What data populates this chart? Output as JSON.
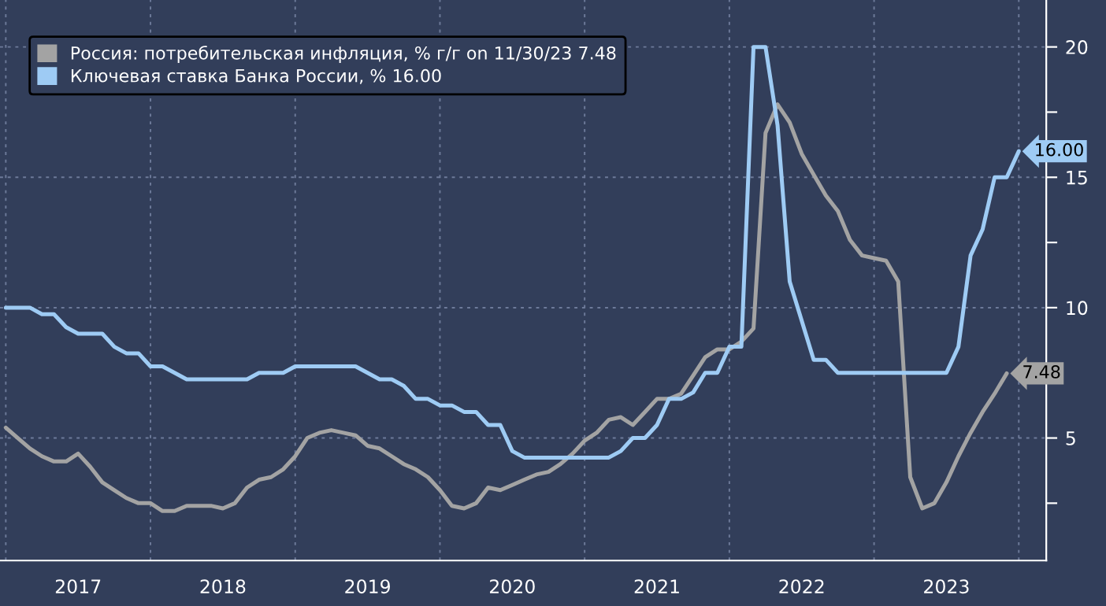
{
  "chart_data": {
    "type": "line",
    "x": [
      2017.0,
      2017.083,
      2017.167,
      2017.25,
      2017.333,
      2017.417,
      2017.5,
      2017.583,
      2017.667,
      2017.75,
      2017.833,
      2017.917,
      2018.0,
      2018.083,
      2018.167,
      2018.25,
      2018.333,
      2018.417,
      2018.5,
      2018.583,
      2018.667,
      2018.75,
      2018.833,
      2018.917,
      2019.0,
      2019.083,
      2019.167,
      2019.25,
      2019.333,
      2019.417,
      2019.5,
      2019.583,
      2019.667,
      2019.75,
      2019.833,
      2019.917,
      2020.0,
      2020.083,
      2020.167,
      2020.25,
      2020.333,
      2020.417,
      2020.5,
      2020.583,
      2020.667,
      2020.75,
      2020.833,
      2020.917,
      2021.0,
      2021.083,
      2021.167,
      2021.25,
      2021.333,
      2021.417,
      2021.5,
      2021.583,
      2021.667,
      2021.75,
      2021.833,
      2021.917,
      2022.0,
      2022.083,
      2022.167,
      2022.25,
      2022.333,
      2022.417,
      2022.5,
      2022.583,
      2022.667,
      2022.75,
      2022.833,
      2022.917,
      2023.0,
      2023.083,
      2023.167,
      2023.25,
      2023.333,
      2023.417,
      2023.5,
      2023.583,
      2023.667,
      2023.75,
      2023.833,
      2023.917,
      2024.0
    ],
    "series": [
      {
        "name": "Россия: потребительская инфляция, % г/г on 11/30/23 7.48",
        "color": "#a3a3a3",
        "values": [
          5.4,
          5.0,
          4.6,
          4.3,
          4.1,
          4.1,
          4.4,
          3.9,
          3.3,
          3.0,
          2.7,
          2.5,
          2.5,
          2.2,
          2.2,
          2.4,
          2.4,
          2.4,
          2.3,
          2.5,
          3.1,
          3.4,
          3.5,
          3.8,
          4.3,
          5.0,
          5.2,
          5.3,
          5.2,
          5.1,
          4.7,
          4.6,
          4.3,
          4.0,
          3.8,
          3.5,
          3.0,
          2.4,
          2.3,
          2.5,
          3.1,
          3.0,
          3.2,
          3.4,
          3.6,
          3.7,
          4.0,
          4.4,
          4.9,
          5.2,
          5.7,
          5.8,
          5.5,
          6.0,
          6.5,
          6.5,
          6.7,
          7.4,
          8.1,
          8.4,
          8.4,
          8.7,
          9.2,
          16.7,
          17.8,
          17.1,
          15.9,
          15.1,
          14.3,
          13.7,
          12.6,
          12.0,
          11.9,
          11.8,
          11.0,
          3.5,
          2.3,
          2.5,
          3.3,
          4.3,
          5.2,
          6.0,
          6.7,
          7.48,
          null
        ],
        "value_labels": [
          null,
          null,
          null,
          null,
          null,
          null,
          null,
          null,
          null,
          null,
          null,
          null,
          null,
          null,
          null,
          null,
          null,
          null,
          null,
          null,
          null,
          null,
          null,
          null,
          null,
          null,
          null,
          null,
          null,
          null,
          null,
          null,
          null,
          null,
          null,
          null,
          null,
          null,
          null,
          null,
          null,
          null,
          null,
          null,
          null,
          null,
          null,
          null,
          null,
          null,
          null,
          null,
          null,
          null,
          null,
          null,
          null,
          null,
          null,
          null,
          null,
          null,
          null,
          null,
          null,
          null,
          null,
          null,
          null,
          null,
          null,
          null,
          null,
          null,
          null,
          null,
          null,
          null,
          null,
          null,
          null,
          null,
          null,
          "7.48",
          null
        ]
      },
      {
        "name": "Ключевая ставка Банка России, % 16.00",
        "color": "#9ecbf4",
        "values": [
          10,
          10,
          10,
          9.75,
          9.75,
          9.25,
          9.0,
          9.0,
          9.0,
          8.5,
          8.25,
          8.25,
          7.75,
          7.75,
          7.5,
          7.25,
          7.25,
          7.25,
          7.25,
          7.25,
          7.25,
          7.5,
          7.5,
          7.5,
          7.75,
          7.75,
          7.75,
          7.75,
          7.75,
          7.75,
          7.5,
          7.25,
          7.25,
          7.0,
          6.5,
          6.5,
          6.25,
          6.25,
          6.0,
          6.0,
          5.5,
          5.5,
          4.5,
          4.25,
          4.25,
          4.25,
          4.25,
          4.25,
          4.25,
          4.25,
          4.25,
          4.5,
          5.0,
          5.0,
          5.5,
          6.5,
          6.5,
          6.75,
          7.5,
          7.5,
          8.5,
          8.5,
          20,
          20,
          17,
          11,
          9.5,
          8.0,
          8.0,
          7.5,
          7.5,
          7.5,
          7.5,
          7.5,
          7.5,
          7.5,
          7.5,
          7.5,
          7.5,
          8.5,
          12,
          13,
          15,
          15,
          16
        ],
        "value_labels": [
          null,
          null,
          null,
          null,
          null,
          null,
          null,
          null,
          null,
          null,
          null,
          null,
          null,
          null,
          null,
          null,
          null,
          null,
          null,
          null,
          null,
          null,
          null,
          null,
          null,
          null,
          null,
          null,
          null,
          null,
          null,
          null,
          null,
          null,
          null,
          null,
          null,
          null,
          null,
          null,
          null,
          null,
          null,
          null,
          null,
          null,
          null,
          null,
          null,
          null,
          null,
          null,
          null,
          null,
          null,
          null,
          null,
          null,
          null,
          null,
          null,
          null,
          null,
          null,
          null,
          null,
          null,
          null,
          null,
          null,
          null,
          null,
          null,
          null,
          null,
          null,
          null,
          null,
          null,
          null,
          null,
          null,
          null,
          null,
          "16.00"
        ]
      }
    ],
    "xlim": [
      2016.96,
      2024.19
    ],
    "xticks": [
      {
        "value": 2017,
        "label": null
      },
      {
        "value": 2017.5,
        "label": "2017"
      },
      {
        "value": 2018,
        "label": null
      },
      {
        "value": 2018.5,
        "label": "2018"
      },
      {
        "value": 2019,
        "label": null
      },
      {
        "value": 2019.5,
        "label": "2019"
      },
      {
        "value": 2020,
        "label": null
      },
      {
        "value": 2020.5,
        "label": "2020"
      },
      {
        "value": 2021,
        "label": null
      },
      {
        "value": 2021.5,
        "label": "2021"
      },
      {
        "value": 2022,
        "label": null
      },
      {
        "value": 2022.5,
        "label": "2022"
      },
      {
        "value": 2023,
        "label": null
      },
      {
        "value": 2023.5,
        "label": "2023"
      },
      {
        "value": 2024,
        "label": null
      }
    ],
    "ylim": [
      0.3,
      21.8
    ],
    "yticks": [
      {
        "value": 2.5,
        "label": null
      },
      5,
      {
        "value": 7.5,
        "label": null
      },
      10,
      {
        "value": 12.5,
        "label": null
      },
      15,
      {
        "value": 17.5,
        "label": null
      },
      20
    ],
    "grid": true,
    "legend": "top left",
    "marker": "none",
    "line_style": "solid"
  }
}
